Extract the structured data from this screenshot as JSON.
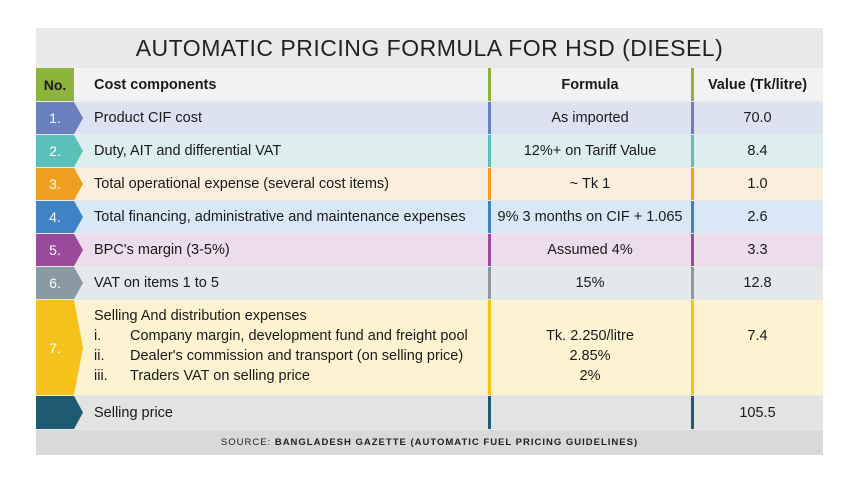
{
  "title": "AUTOMATIC PRICING FORMULA FOR HSD (DIESEL)",
  "header": {
    "no": "No.",
    "cost": "Cost components",
    "formula": "Formula",
    "value": "Value (Tk/litre)"
  },
  "rows": [
    {
      "no": "1.",
      "cost": "Product CIF cost",
      "formula": "As imported",
      "value": "70.0",
      "color": "#6a7fc0",
      "bg": "#dde2f2"
    },
    {
      "no": "2.",
      "cost": "Duty, AIT and differential VAT",
      "formula": "12%+  on Tariff Value",
      "value": "8.4",
      "color": "#5bbfba",
      "bg": "#dcefee"
    },
    {
      "no": "3.",
      "cost": "Total operational expense (several cost items)",
      "formula": "~ Tk 1",
      "value": "1.0",
      "color": "#f0a020",
      "bg": "#fbeedd"
    },
    {
      "no": "4.",
      "cost": "Total financing, administrative and maintenance expenses",
      "formula": "9% 3 months on CIF + 1.065",
      "value": "2.6",
      "color": "#3f83c4",
      "bg": "#d9e8f6"
    },
    {
      "no": "5.",
      "cost": "BPC's margin (3-5%)",
      "formula": "Assumed 4%",
      "value": "3.3",
      "color": "#9a4a9a",
      "bg": "#ecdcec"
    },
    {
      "no": "6.",
      "cost": "VAT on items 1 to 5",
      "formula": "15%",
      "value": "12.8",
      "color": "#8a9aa4",
      "bg": "#e4e8ea"
    },
    {
      "no": "7.",
      "cost": "Selling And distribution expenses",
      "formula": "",
      "value": "7.4",
      "color": "#f4c21a",
      "bg": "#fdf3d0",
      "subitems": [
        {
          "roman": "i.",
          "text": "Company margin, development fund and freight pool",
          "formula": "Tk. 2.250/litre"
        },
        {
          "roman": "ii.",
          "text": "Dealer's commission and transport (on selling price)",
          "formula": "2.85%"
        },
        {
          "roman": "iii.",
          "text": "Traders VAT on selling price",
          "formula": "2%"
        }
      ]
    },
    {
      "no": "",
      "cost": "Selling price",
      "formula": "",
      "value": "105.5",
      "color": "#1f5a73",
      "bg": "#e3e3e3"
    }
  ],
  "source_label": "SOURCE:",
  "source_text": "BANGLADESH GAZETTE (AUTOMATIC FUEL PRICING GUIDELINES)",
  "colors": {
    "header_accent": "#8cb33a"
  }
}
